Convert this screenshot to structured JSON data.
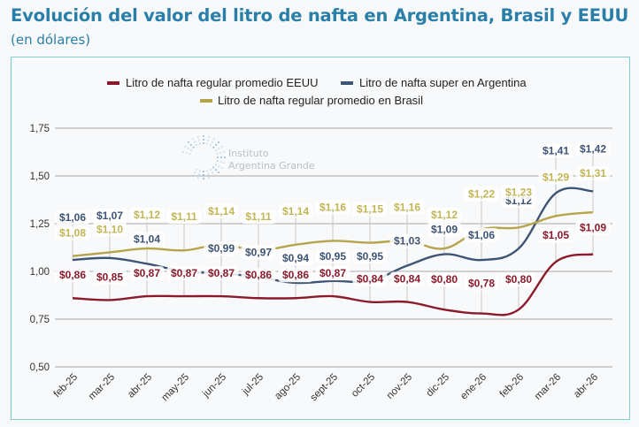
{
  "header": {
    "title": "Evolución del valor del litro de nafta en Argentina, Brasil y EEUU",
    "subtitle": "(en dólares)"
  },
  "watermark": {
    "line1": "Instituto",
    "line2": "Argentina Grande"
  },
  "chart_data": {
    "type": "line",
    "title": "Evolución del valor del litro de nafta en Argentina, Brasil y EEUU",
    "subtitle": "(en dólares)",
    "xlabel": "",
    "ylabel": "",
    "ylim": [
      0.5,
      1.75
    ],
    "yticks": [
      0.5,
      0.75,
      1.0,
      1.25,
      1.5,
      1.75
    ],
    "ytick_labels": [
      "0,50",
      "0,75",
      "1,00",
      "1,25",
      "1,50",
      "1,75"
    ],
    "grid": true,
    "legend_position": "top-center",
    "categories": [
      "feb-25",
      "mar-25",
      "abr-25",
      "may-25",
      "jun-25",
      "jul-25",
      "ago-25",
      "sept-25",
      "oct-25",
      "nov-25",
      "dic-25",
      "ene-26",
      "feb-26",
      "mar-26",
      "abr-26"
    ],
    "series": [
      {
        "name": "Litro de nafta regular promedio EEUU",
        "color": "#8b1a2b",
        "values": [
          0.86,
          0.85,
          0.87,
          0.87,
          0.87,
          0.86,
          0.86,
          0.87,
          0.84,
          0.84,
          0.8,
          0.78,
          0.8,
          1.05,
          1.09
        ],
        "labels": [
          "$0,86",
          "$0,85",
          "$0,87",
          "$0,87",
          "$0,87",
          "$0,86",
          "$0,86",
          "$0,87",
          "$0,84",
          "$0,84",
          "$0,80",
          "$0,78",
          "$0,80",
          "$1,05",
          "$1,09"
        ]
      },
      {
        "name": "Litro de nafta super en Argentina",
        "color": "#3d5475",
        "values": [
          1.06,
          1.07,
          1.04,
          1.0,
          0.99,
          0.97,
          0.94,
          0.95,
          0.95,
          1.03,
          1.09,
          1.06,
          1.12,
          1.41,
          1.42
        ],
        "labels": [
          "$1,06",
          "$1,07",
          "$1,04",
          "",
          "$0,99",
          "$0,97",
          "$0,94",
          "$0,95",
          "$0,95",
          "$1,03",
          "$1,09",
          "$1,06",
          "$1,12",
          "$1,41",
          "$1,42"
        ]
      },
      {
        "name": "Litro de nafta regular promedio en Brasil",
        "color": "#b5a44a",
        "values": [
          1.08,
          1.1,
          1.12,
          1.11,
          1.14,
          1.11,
          1.14,
          1.16,
          1.15,
          1.16,
          1.12,
          1.22,
          1.23,
          1.29,
          1.31
        ],
        "labels": [
          "$1,08",
          "$1,10",
          "$1,12",
          "$1,11",
          "$1,14",
          "$1,11",
          "$1,14",
          "$1,16",
          "$1,15",
          "$1,16",
          "$1,12",
          "$1,22",
          "$1,23",
          "$1,29",
          "$1,31"
        ]
      }
    ]
  }
}
